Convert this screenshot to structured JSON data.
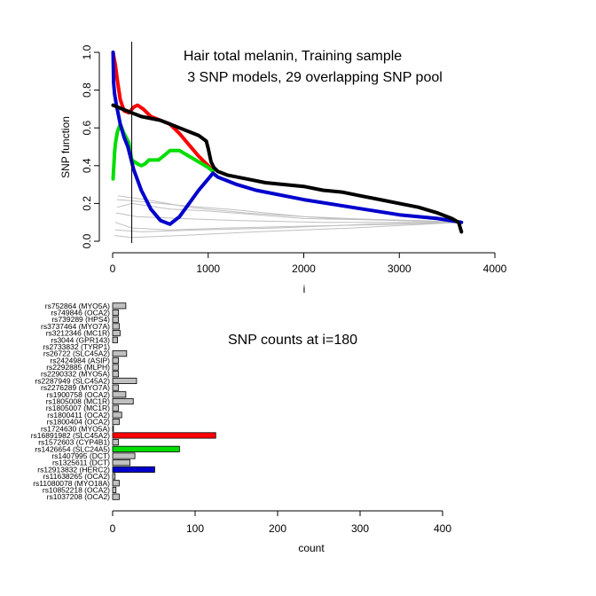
{
  "chart_data": [
    {
      "type": "line",
      "title_lines": [
        "Hair total melanin, Training sample",
        "3 SNP models, 29 overlapping SNP pool"
      ],
      "xlabel": "i",
      "ylabel": "SNP function",
      "xlim": [
        0,
        4000
      ],
      "ylim": [
        0,
        1.0
      ],
      "xticks": [
        0,
        1000,
        2000,
        3000,
        4000
      ],
      "yticks": [
        0.0,
        0.2,
        0.4,
        0.6,
        0.8,
        1.0
      ],
      "ytick_labels": [
        "0.0",
        "0.2",
        "0.4",
        "0.6",
        "0.8",
        "1.0"
      ],
      "vline_x": 200,
      "grid": false,
      "series": [
        {
          "color": "#ff0000",
          "points": [
            [
              5,
              1.0
            ],
            [
              15,
              0.97
            ],
            [
              30,
              0.93
            ],
            [
              50,
              0.85
            ],
            [
              80,
              0.75
            ],
            [
              120,
              0.69
            ],
            [
              170,
              0.68
            ],
            [
              220,
              0.71
            ],
            [
              260,
              0.72
            ],
            [
              320,
              0.7
            ],
            [
              400,
              0.66
            ],
            [
              500,
              0.64
            ],
            [
              600,
              0.62
            ],
            [
              700,
              0.57
            ],
            [
              800,
              0.51
            ],
            [
              900,
              0.45
            ],
            [
              1000,
              0.4
            ],
            [
              1050,
              0.37
            ]
          ]
        },
        {
          "color": "#00dd00",
          "points": [
            [
              5,
              0.33
            ],
            [
              10,
              0.38
            ],
            [
              15,
              0.42
            ],
            [
              20,
              0.47
            ],
            [
              30,
              0.52
            ],
            [
              50,
              0.58
            ],
            [
              80,
              0.62
            ],
            [
              110,
              0.58
            ],
            [
              140,
              0.55
            ],
            [
              170,
              0.52
            ],
            [
              200,
              0.43
            ],
            [
              260,
              0.41
            ],
            [
              300,
              0.4
            ],
            [
              340,
              0.41
            ],
            [
              380,
              0.43
            ],
            [
              420,
              0.43
            ],
            [
              480,
              0.43
            ],
            [
              530,
              0.45
            ],
            [
              600,
              0.48
            ],
            [
              700,
              0.48
            ],
            [
              800,
              0.45
            ],
            [
              900,
              0.42
            ],
            [
              1000,
              0.39
            ],
            [
              1050,
              0.37
            ]
          ]
        },
        {
          "color": "#0000cc",
          "points": [
            [
              5,
              1.0
            ],
            [
              10,
              0.84
            ],
            [
              20,
              0.78
            ],
            [
              40,
              0.72
            ],
            [
              80,
              0.62
            ],
            [
              120,
              0.55
            ],
            [
              160,
              0.5
            ],
            [
              220,
              0.38
            ],
            [
              300,
              0.27
            ],
            [
              400,
              0.17
            ],
            [
              500,
              0.11
            ],
            [
              600,
              0.09
            ],
            [
              700,
              0.13
            ],
            [
              800,
              0.2
            ],
            [
              900,
              0.27
            ],
            [
              1000,
              0.33
            ],
            [
              1050,
              0.36
            ],
            [
              1100,
              0.34
            ],
            [
              1300,
              0.3
            ],
            [
              1500,
              0.27
            ],
            [
              2000,
              0.22
            ],
            [
              2500,
              0.18
            ],
            [
              3000,
              0.14
            ],
            [
              3400,
              0.12
            ],
            [
              3650,
              0.1
            ]
          ]
        },
        {
          "color": "#000000",
          "points": [
            [
              5,
              0.72
            ],
            [
              100,
              0.7
            ],
            [
              200,
              0.68
            ],
            [
              300,
              0.66
            ],
            [
              400,
              0.65
            ],
            [
              500,
              0.64
            ],
            [
              600,
              0.62
            ],
            [
              700,
              0.6
            ],
            [
              800,
              0.58
            ],
            [
              900,
              0.56
            ],
            [
              980,
              0.53
            ],
            [
              1000,
              0.49
            ],
            [
              1030,
              0.42
            ],
            [
              1060,
              0.39
            ],
            [
              1100,
              0.37
            ],
            [
              1200,
              0.35
            ],
            [
              1400,
              0.33
            ],
            [
              1600,
              0.31
            ],
            [
              1800,
              0.3
            ],
            [
              2000,
              0.29
            ],
            [
              2200,
              0.27
            ],
            [
              2400,
              0.26
            ],
            [
              2600,
              0.24
            ],
            [
              2800,
              0.22
            ],
            [
              3000,
              0.2
            ],
            [
              3200,
              0.18
            ],
            [
              3400,
              0.15
            ],
            [
              3550,
              0.12
            ],
            [
              3620,
              0.1
            ],
            [
              3650,
              0.05
            ]
          ]
        },
        {
          "color": "#c0c0c0",
          "points": [
            [
              50,
              0.18
            ],
            [
              200,
              0.2
            ],
            [
              600,
              0.17
            ],
            [
              1000,
              0.16
            ],
            [
              2000,
              0.12
            ],
            [
              3000,
              0.11
            ],
            [
              3650,
              0.1
            ]
          ]
        },
        {
          "color": "#c0c0c0",
          "points": [
            [
              50,
              0.22
            ],
            [
              300,
              0.21
            ],
            [
              700,
              0.19
            ],
            [
              1200,
              0.17
            ],
            [
              2000,
              0.13
            ],
            [
              3000,
              0.11
            ],
            [
              3650,
              0.1
            ]
          ]
        },
        {
          "color": "#c0c0c0",
          "points": [
            [
              30,
              0.1
            ],
            [
              200,
              0.07
            ],
            [
              600,
              0.06
            ],
            [
              1200,
              0.07
            ],
            [
              2000,
              0.08
            ],
            [
              3000,
              0.09
            ],
            [
              3650,
              0.1
            ]
          ]
        },
        {
          "color": "#c0c0c0",
          "points": [
            [
              40,
              0.15
            ],
            [
              250,
              0.13
            ],
            [
              700,
              0.12
            ],
            [
              1300,
              0.11
            ],
            [
              2200,
              0.1
            ],
            [
              3100,
              0.1
            ],
            [
              3650,
              0.1
            ]
          ]
        },
        {
          "color": "#c0c0c0",
          "points": [
            [
              20,
              0.03
            ],
            [
              200,
              0.02
            ],
            [
              700,
              0.03
            ],
            [
              1500,
              0.05
            ],
            [
              2500,
              0.07
            ],
            [
              3650,
              0.1
            ]
          ]
        },
        {
          "color": "#c0c0c0",
          "points": [
            [
              60,
              0.24
            ],
            [
              350,
              0.22
            ],
            [
              800,
              0.18
            ],
            [
              1400,
              0.15
            ],
            [
              2300,
              0.12
            ],
            [
              3200,
              0.11
            ],
            [
              3650,
              0.1
            ]
          ]
        },
        {
          "color": "#c0c0c0",
          "points": [
            [
              30,
              0.06
            ],
            [
              300,
              0.05
            ],
            [
              900,
              0.06
            ],
            [
              1700,
              0.07
            ],
            [
              2700,
              0.09
            ],
            [
              3650,
              0.1
            ]
          ]
        }
      ]
    },
    {
      "type": "bar",
      "orientation": "horizontal",
      "title": "SNP counts at i=180",
      "xlabel": "count",
      "xlim": [
        0,
        400
      ],
      "xticks": [
        0,
        100,
        200,
        300,
        400
      ],
      "categories": [
        "rs752864 (MYO5A)",
        "rs749846 (OCA2)",
        "rs739289 (HPS4)",
        "rs3737464 (MYO7A)",
        "rs3212346 (MC1R)",
        "rs3044 (GPR143)",
        "rs2733832 (TYRP1)",
        "rs26722 (SLC45A2)",
        "rs2424984 (ASIP)",
        "rs2292885 (MLPH)",
        "rs2290332 (MYO5A)",
        "rs2287949 (SLC45A2)",
        "rs2276289 (MYO7A)",
        "rs1900758 (OCA2)",
        "rs1805008 (MC1R)",
        "rs1805007 (MC1R)",
        "rs1800411 (OCA2)",
        "rs1800404 (OCA2)",
        "rs1724630 (MYO5A)",
        "rs16891982 (SLC45A2)",
        "rs1572603 (CYP4B1)",
        "rs1426654 (SLC24A5)",
        "rs1407995 (DCT)",
        "rs1325611 (DCT)",
        "rs12913832 (HERC2)",
        "rs11638265 (OCA2)",
        "rs11080078 (MYO18A)",
        "rs10852218 (OCA2)",
        "rs1037208 (OCA2)"
      ],
      "values": [
        16,
        7,
        7,
        8,
        9,
        6,
        0,
        17,
        7,
        7,
        7,
        29,
        7,
        16,
        25,
        7,
        11,
        8,
        1,
        125,
        7,
        81,
        27,
        21,
        51,
        3,
        8,
        4,
        8
      ],
      "bar_colors": [
        "#c0c0c0",
        "#c0c0c0",
        "#c0c0c0",
        "#c0c0c0",
        "#c0c0c0",
        "#c0c0c0",
        "#c0c0c0",
        "#c0c0c0",
        "#c0c0c0",
        "#c0c0c0",
        "#c0c0c0",
        "#c0c0c0",
        "#c0c0c0",
        "#c0c0c0",
        "#c0c0c0",
        "#c0c0c0",
        "#c0c0c0",
        "#c0c0c0",
        "#c0c0c0",
        "#ff0000",
        "#c0c0c0",
        "#00dd00",
        "#c0c0c0",
        "#c0c0c0",
        "#0000cc",
        "#c0c0c0",
        "#c0c0c0",
        "#c0c0c0",
        "#c0c0c0"
      ]
    }
  ]
}
